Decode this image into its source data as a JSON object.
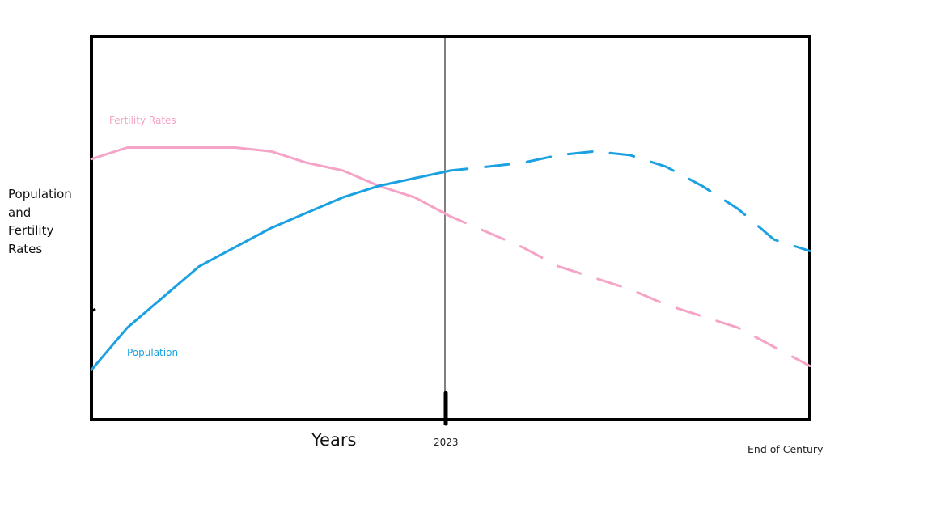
{
  "chart_data": {
    "type": "line",
    "title": "",
    "xlabel": "Years",
    "ylabel": "Population\nand\nFertility\nRates",
    "x_ticks": [
      "2023",
      "End of Century"
    ],
    "grid": false,
    "legend": "inline labels",
    "series": [
      {
        "name": "Fertility Rates",
        "color": "#f5a3c7",
        "style": "solid to 2023, dashed after",
        "points": [
          [
            0.0,
            0.68
          ],
          [
            0.05,
            0.71
          ],
          [
            0.1,
            0.71
          ],
          [
            0.15,
            0.71
          ],
          [
            0.2,
            0.71
          ],
          [
            0.25,
            0.7
          ],
          [
            0.3,
            0.67
          ],
          [
            0.35,
            0.65
          ],
          [
            0.4,
            0.61
          ],
          [
            0.45,
            0.58
          ],
          [
            0.5,
            0.53
          ],
          [
            0.55,
            0.49
          ],
          [
            0.6,
            0.45
          ],
          [
            0.65,
            0.4
          ],
          [
            0.7,
            0.37
          ],
          [
            0.75,
            0.34
          ],
          [
            0.8,
            0.3
          ],
          [
            0.85,
            0.27
          ],
          [
            0.9,
            0.24
          ],
          [
            0.95,
            0.19
          ],
          [
            1.0,
            0.14
          ]
        ]
      },
      {
        "name": "Population",
        "color": "#1ba1e2",
        "style": "solid to 2023, dashed after",
        "points": [
          [
            0.0,
            0.13
          ],
          [
            0.05,
            0.24
          ],
          [
            0.1,
            0.32
          ],
          [
            0.15,
            0.4
          ],
          [
            0.2,
            0.45
          ],
          [
            0.25,
            0.5
          ],
          [
            0.3,
            0.54
          ],
          [
            0.35,
            0.58
          ],
          [
            0.4,
            0.61
          ],
          [
            0.45,
            0.63
          ],
          [
            0.5,
            0.65
          ],
          [
            0.55,
            0.66
          ],
          [
            0.6,
            0.67
          ],
          [
            0.65,
            0.69
          ],
          [
            0.7,
            0.7
          ],
          [
            0.75,
            0.69
          ],
          [
            0.8,
            0.66
          ],
          [
            0.85,
            0.61
          ],
          [
            0.9,
            0.55
          ],
          [
            0.95,
            0.47
          ],
          [
            1.0,
            0.44
          ]
        ]
      }
    ]
  }
}
